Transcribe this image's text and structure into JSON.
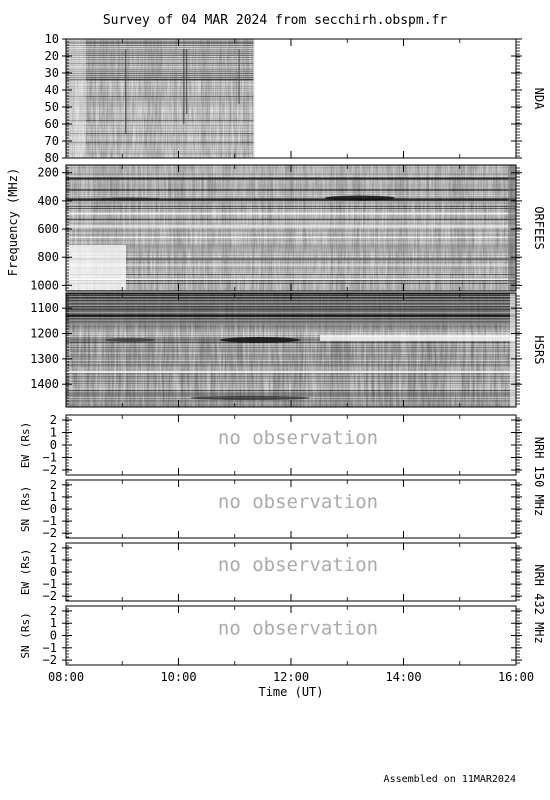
{
  "header": {
    "title": "Survey of 04 MAR 2024 from secchirh.obspm.fr"
  },
  "footer": {
    "assembled": "Assembled on 11MAR2024"
  },
  "chart_data": {
    "type": "heatmap",
    "title": "Survey of 04 MAR 2024 from secchirh.obspm.fr",
    "xlabel": "Time (UT)",
    "xlim": [
      "08:00",
      "16:00"
    ],
    "xticks": [
      "08:00",
      "10:00",
      "12:00",
      "14:00",
      "16:00"
    ],
    "spectro_ylabel": "Frequency (MHz)",
    "panels": [
      {
        "name": "NDA",
        "ylim": [
          80,
          10
        ],
        "ticks": [
          10,
          20,
          30,
          40,
          50,
          60,
          70,
          80
        ],
        "data_until": "11:20",
        "status": "data"
      },
      {
        "name": "ORFEES",
        "ylim": [
          1040,
          145
        ],
        "ticks": [
          200,
          400,
          600,
          800,
          1000
        ],
        "data_until": "16:00",
        "status": "data"
      },
      {
        "name": "HSRS",
        "ylim": [
          1490,
          1040
        ],
        "ticks": [
          1100,
          1200,
          1300,
          1400
        ],
        "data_until": "16:00",
        "status": "data"
      }
    ],
    "nrh_panels": [
      {
        "ylabel": "EW (Rs)",
        "ylim": [
          -2.4,
          2.4
        ],
        "ticks": [
          2,
          1,
          0,
          -1,
          -2
        ],
        "message": "no observation"
      },
      {
        "ylabel": "SN (Rs)",
        "ylim": [
          -2.4,
          2.4
        ],
        "ticks": [
          2,
          1,
          0,
          -1,
          -2
        ],
        "message": "no observation"
      },
      {
        "ylabel": "EW (Rs)",
        "ylim": [
          -2.4,
          2.4
        ],
        "ticks": [
          2,
          1,
          0,
          -1,
          -2
        ],
        "message": "no observation"
      },
      {
        "ylabel": "SN (Rs)",
        "ylim": [
          -2.4,
          2.4
        ],
        "ticks": [
          2,
          1,
          0,
          -1,
          -2
        ],
        "message": "no observation"
      }
    ],
    "nrh_labels": [
      "NRH 150 MHz",
      "NRH 432 MHz"
    ],
    "colormap": {
      "low": "#ffffff",
      "high": "#000000"
    }
  }
}
